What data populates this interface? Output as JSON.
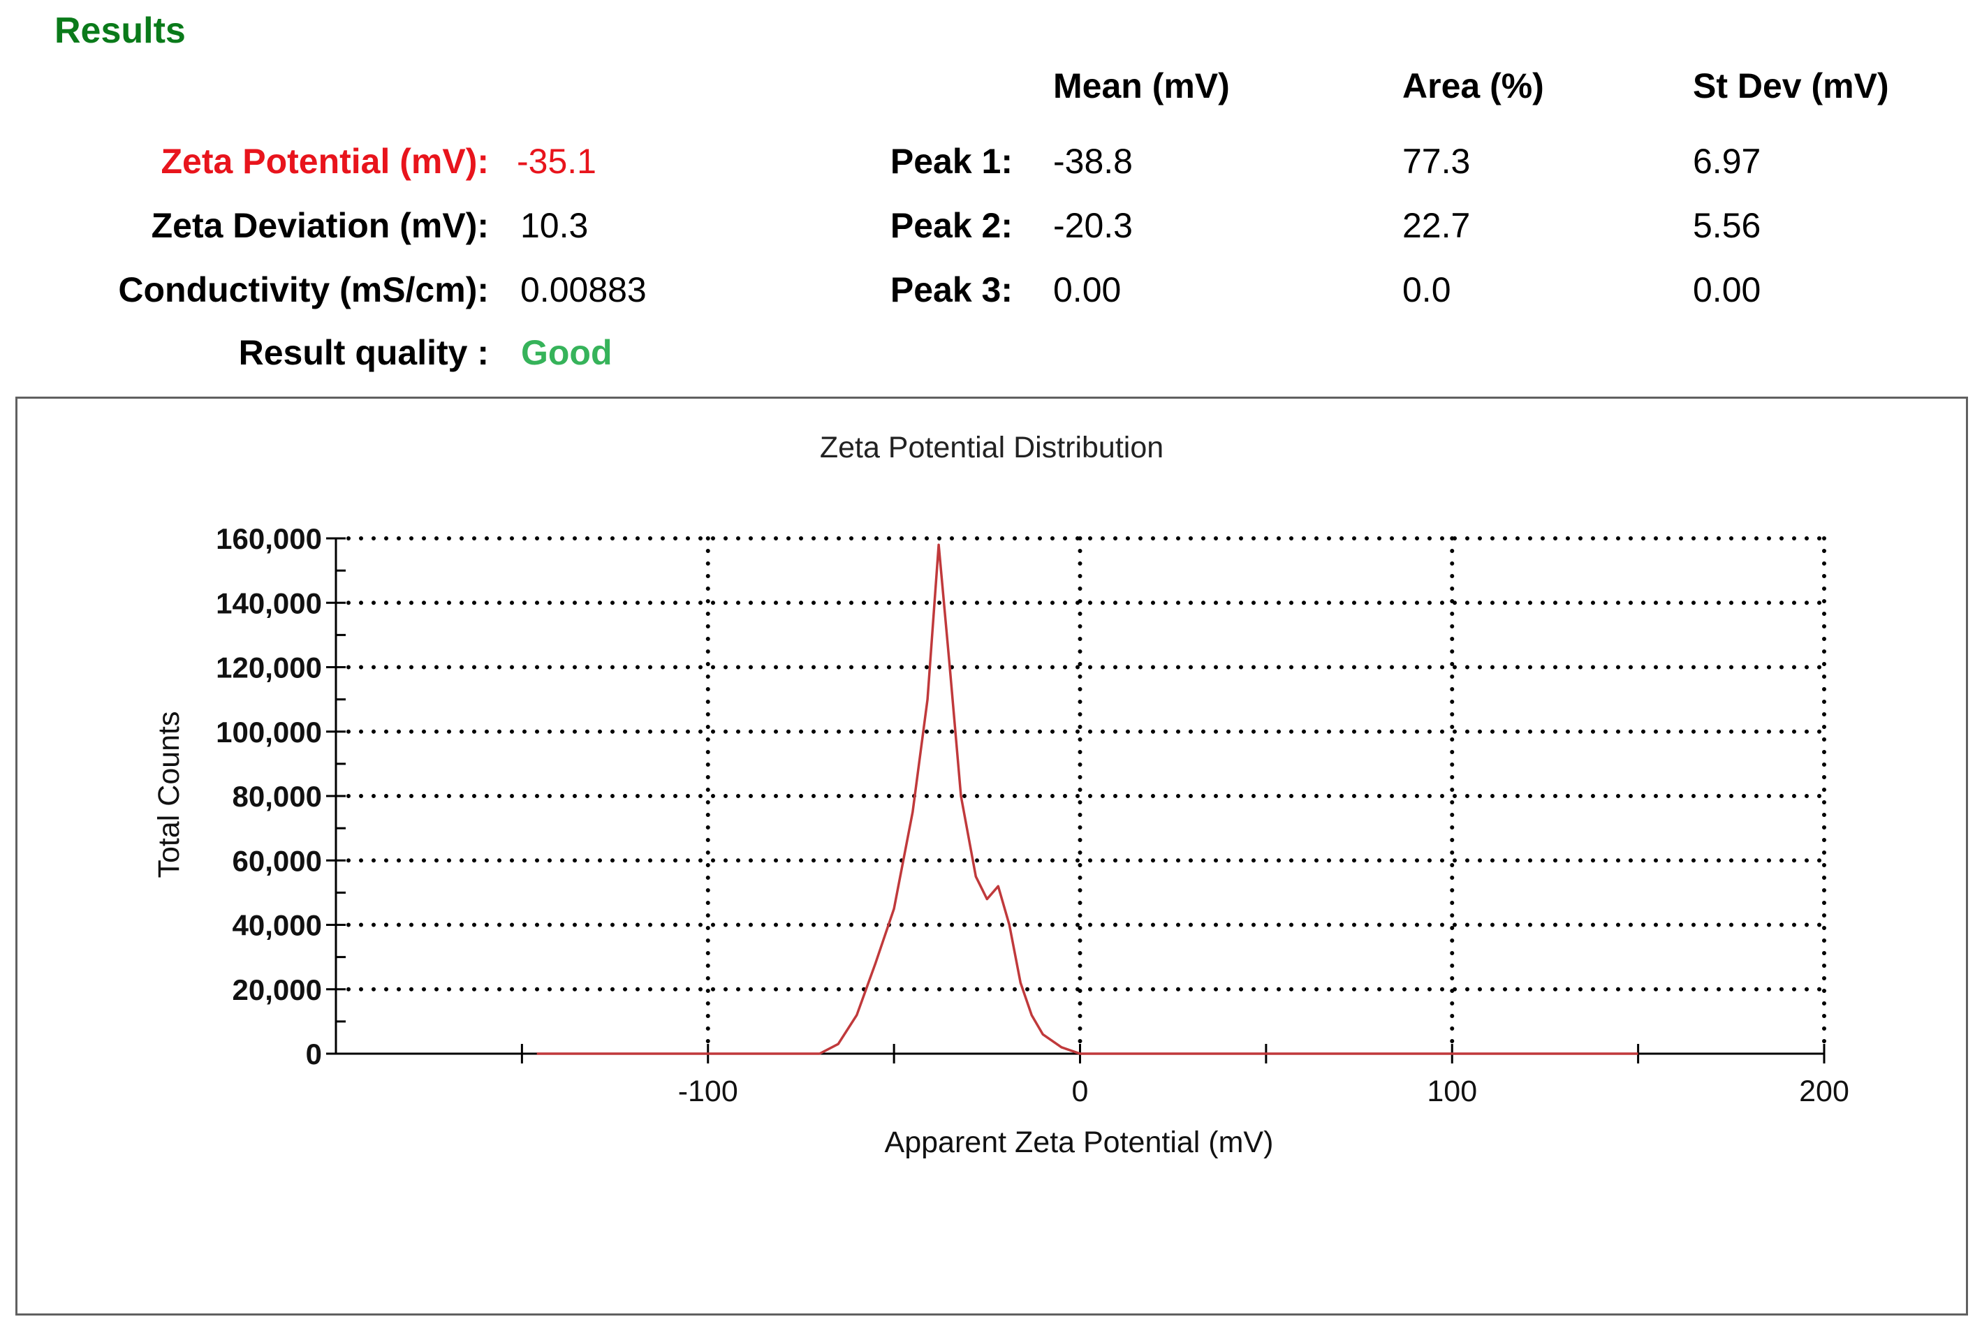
{
  "results": {
    "title": "Results",
    "zeta_potential_label": "Zeta Potential (mV):",
    "zeta_potential_value": "-35.1",
    "zeta_deviation_label": "Zeta Deviation (mV):",
    "zeta_deviation_value": "10.3",
    "conductivity_label": "Conductivity (mS/cm):",
    "conductivity_value": "0.00883",
    "quality_label": "Result quality :",
    "quality_value": "Good",
    "colors": {
      "title": "#0a7a1a",
      "zeta_potential": "#e8141c",
      "quality_good": "#36b35a"
    }
  },
  "peaks_table": {
    "headers": [
      "Mean (mV)",
      "Area (%)",
      "St Dev (mV)"
    ],
    "rows": [
      {
        "label": "Peak 1:",
        "mean": "-38.8",
        "area": "77.3",
        "stdev": "6.97"
      },
      {
        "label": "Peak 2:",
        "mean": "-20.3",
        "area": "22.7",
        "stdev": "5.56"
      },
      {
        "label": "Peak 3:",
        "mean": "0.00",
        "area": "0.0",
        "stdev": "0.00"
      }
    ]
  },
  "chart_data": {
    "type": "line",
    "title": "Zeta Potential Distribution",
    "xlabel": "Apparent Zeta Potential (mV)",
    "ylabel": "Total Counts",
    "xlim": [
      -200,
      200
    ],
    "ylim": [
      0,
      160000
    ],
    "x_ticks": [
      -100,
      0,
      100,
      200
    ],
    "x_tick_labels": [
      "-100",
      "0",
      "100",
      "200"
    ],
    "y_ticks": [
      0,
      20000,
      40000,
      60000,
      80000,
      100000,
      120000,
      140000,
      160000
    ],
    "y_tick_labels": [
      "0",
      "20,000",
      "40,000",
      "60,000",
      "80,000",
      "100,000",
      "120,000",
      "140,000",
      "160,000"
    ],
    "grid": true,
    "line_color": "#c0393b",
    "series": [
      {
        "x": [
          -146,
          -70,
          -65,
          -60,
          -55,
          -50,
          -45,
          -41,
          -38,
          -35,
          -32,
          -28,
          -25,
          -22,
          -19,
          -16,
          -13,
          -10,
          -5,
          0,
          150
        ],
        "y": [
          0,
          0,
          3000,
          12000,
          28000,
          45000,
          75000,
          110000,
          158000,
          120000,
          80000,
          55000,
          48000,
          52000,
          40000,
          22000,
          12000,
          6000,
          2000,
          0,
          0
        ]
      }
    ]
  }
}
